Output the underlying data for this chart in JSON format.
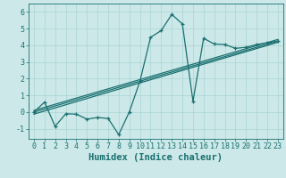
{
  "xlabel": "Humidex (Indice chaleur)",
  "background_color": "#cce8e8",
  "line_color": "#1a7070",
  "grid_color": "#aad4d4",
  "xlim": [
    -0.5,
    23.5
  ],
  "ylim": [
    -1.6,
    6.5
  ],
  "yticks": [
    -1,
    0,
    1,
    2,
    3,
    4,
    5,
    6
  ],
  "xticks": [
    0,
    1,
    2,
    3,
    4,
    5,
    6,
    7,
    8,
    9,
    10,
    11,
    12,
    13,
    14,
    15,
    16,
    17,
    18,
    19,
    20,
    21,
    22,
    23
  ],
  "scatter_x": [
    0,
    1,
    2,
    3,
    4,
    5,
    6,
    7,
    8,
    9,
    10,
    11,
    12,
    13,
    14,
    15,
    16,
    17,
    18,
    19,
    20,
    21,
    22,
    23
  ],
  "scatter_y": [
    0.0,
    0.6,
    -0.85,
    -0.1,
    -0.12,
    -0.42,
    -0.32,
    -0.38,
    -1.35,
    0.02,
    1.85,
    4.48,
    4.88,
    5.85,
    5.28,
    0.65,
    4.42,
    4.08,
    4.05,
    3.82,
    3.88,
    4.05,
    4.15,
    4.25
  ],
  "line1_x": [
    0,
    23
  ],
  "line1_y": [
    0.0,
    4.25
  ],
  "line2_x": [
    0,
    23
  ],
  "line2_y": [
    0.1,
    4.35
  ],
  "line3_x": [
    0,
    23
  ],
  "line3_y": [
    -0.12,
    4.18
  ],
  "font_family": "monospace",
  "tick_fontsize": 6,
  "label_fontsize": 7.5
}
